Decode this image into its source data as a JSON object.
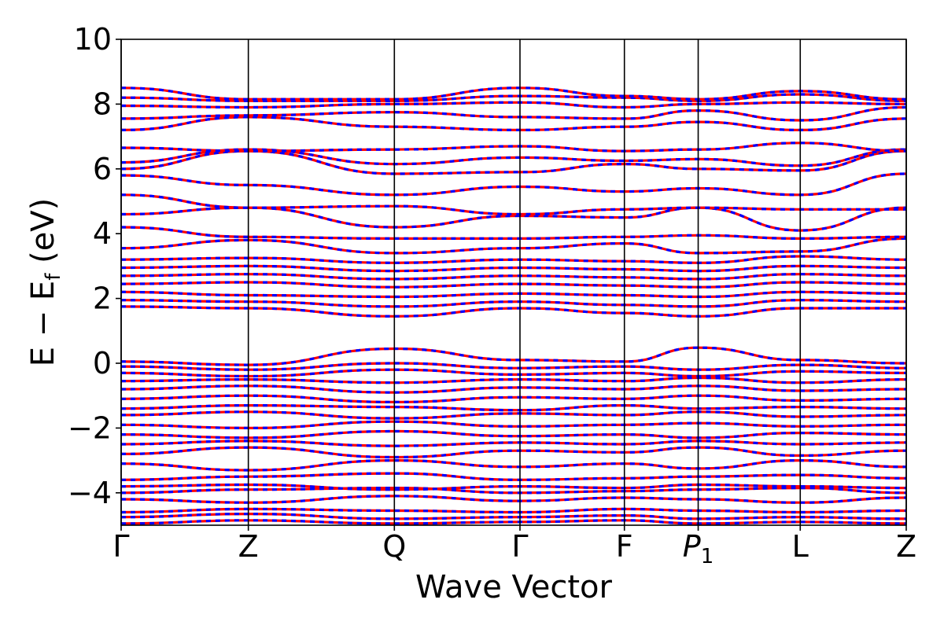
{
  "chart_data": {
    "type": "line",
    "xlabel": "Wave Vector",
    "ylabel": "E − E_f (eV)",
    "ylabel_parts": {
      "main": "E − E",
      "sub": "f",
      "unit": " (eV)"
    },
    "ylim": [
      -5,
      10
    ],
    "y_ticks": [
      {
        "value": -4,
        "label": "−4"
      },
      {
        "value": -2,
        "label": "−2"
      },
      {
        "value": 0,
        "label": "0"
      },
      {
        "value": 2,
        "label": "2"
      },
      {
        "value": 4,
        "label": "4"
      },
      {
        "value": 6,
        "label": "6"
      },
      {
        "value": 8,
        "label": "8"
      },
      {
        "value": 10,
        "label": "10"
      }
    ],
    "k_points": [
      {
        "label": "Γ",
        "k": 0.0
      },
      {
        "label": "Z",
        "k": 0.162
      },
      {
        "label": "Q",
        "k": 0.348
      },
      {
        "label": "Γ",
        "k": 0.508
      },
      {
        "label": "F",
        "k": 0.641
      },
      {
        "label": "P",
        "sub": "1",
        "k": 0.735
      },
      {
        "label": "L",
        "k": 0.865
      },
      {
        "label": "Z",
        "k": 1.0
      }
    ],
    "grid": false,
    "legend": "none",
    "colors": {
      "solid_band": "#ff0000",
      "dashed_band": "#0000ff"
    },
    "series_style_note": "each band drawn as solid red line overlaid by dashed blue line",
    "bands": [
      {
        "values": [
          -4.95,
          -4.85,
          -4.95,
          -4.9,
          -4.85,
          -4.95,
          -4.9,
          -4.95
        ]
      },
      {
        "values": [
          -4.75,
          -4.65,
          -4.8,
          -4.75,
          -4.7,
          -4.8,
          -4.75,
          -4.8
        ]
      },
      {
        "values": [
          -4.6,
          -4.5,
          -4.55,
          -4.6,
          -4.5,
          -4.55,
          -4.6,
          -4.55
        ]
      },
      {
        "values": [
          -4.2,
          -4.3,
          -4.1,
          -4.25,
          -4.15,
          -4.2,
          -4.3,
          -4.15
        ]
      },
      {
        "values": [
          -4.0,
          -3.9,
          -3.85,
          -4.0,
          -3.95,
          -3.9,
          -3.85,
          -4.0
        ]
      },
      {
        "values": [
          -3.8,
          -3.75,
          -3.9,
          -3.8,
          -3.85,
          -3.75,
          -3.8,
          -3.85
        ]
      },
      {
        "values": [
          -3.6,
          -3.5,
          -3.4,
          -3.6,
          -3.55,
          -3.5,
          -3.45,
          -3.55
        ]
      },
      {
        "values": [
          -3.1,
          -3.3,
          -3.0,
          -3.2,
          -3.1,
          -3.25,
          -3.0,
          -3.2
        ]
      },
      {
        "values": [
          -2.8,
          -2.6,
          -2.9,
          -2.7,
          -2.75,
          -2.6,
          -2.85,
          -2.7
        ]
      },
      {
        "values": [
          -2.5,
          -2.4,
          -2.55,
          -2.45,
          -2.5,
          -2.4,
          -2.5,
          -2.45
        ]
      },
      {
        "values": [
          -2.2,
          -2.3,
          -2.1,
          -2.25,
          -2.2,
          -2.3,
          -2.15,
          -2.2
        ]
      },
      {
        "values": [
          -1.9,
          -2.0,
          -1.8,
          -1.95,
          -1.9,
          -1.85,
          -1.95,
          -1.9
        ]
      },
      {
        "values": [
          -1.6,
          -1.5,
          -1.7,
          -1.55,
          -1.6,
          -1.5,
          -1.65,
          -1.6
        ]
      },
      {
        "values": [
          -1.4,
          -1.3,
          -1.35,
          -1.45,
          -1.3,
          -1.4,
          -1.35,
          -1.4
        ]
      },
      {
        "values": [
          -1.1,
          -1.0,
          -1.2,
          -1.05,
          -1.1,
          -1.0,
          -1.15,
          -1.1
        ]
      },
      {
        "values": [
          -0.8,
          -0.7,
          -0.9,
          -0.75,
          -0.8,
          -0.7,
          -0.85,
          -0.8
        ]
      },
      {
        "values": [
          -0.55,
          -0.5,
          -0.6,
          -0.5,
          -0.55,
          -0.45,
          -0.6,
          -0.5
        ]
      },
      {
        "values": [
          -0.3,
          -0.4,
          -0.2,
          -0.35,
          -0.3,
          -0.4,
          -0.25,
          -0.3
        ]
      },
      {
        "values": [
          -0.1,
          -0.2,
          0.0,
          -0.15,
          -0.1,
          -0.2,
          -0.05,
          -0.15
        ]
      },
      {
        "values": [
          0.05,
          -0.05,
          0.45,
          0.1,
          0.05,
          0.48,
          0.1,
          0.0
        ]
      },
      {
        "values": [
          1.75,
          1.7,
          1.45,
          1.7,
          1.55,
          1.45,
          1.7,
          1.7
        ]
      },
      {
        "values": [
          1.95,
          1.9,
          1.75,
          1.9,
          1.8,
          1.75,
          1.95,
          1.9
        ]
      },
      {
        "values": [
          2.2,
          2.1,
          2.05,
          2.15,
          2.1,
          2.05,
          2.2,
          2.15
        ]
      },
      {
        "values": [
          2.45,
          2.5,
          2.35,
          2.45,
          2.4,
          2.35,
          2.5,
          2.45
        ]
      },
      {
        "values": [
          2.7,
          2.75,
          2.6,
          2.7,
          2.65,
          2.6,
          2.75,
          2.7
        ]
      },
      {
        "values": [
          2.95,
          3.0,
          2.85,
          2.95,
          2.9,
          2.85,
          3.0,
          2.95
        ]
      },
      {
        "values": [
          3.2,
          3.25,
          3.1,
          3.2,
          3.15,
          3.1,
          3.3,
          3.2
        ]
      },
      {
        "values": [
          3.55,
          3.8,
          3.4,
          3.55,
          3.7,
          3.4,
          3.45,
          3.85
        ]
      },
      {
        "values": [
          4.2,
          3.9,
          3.85,
          3.85,
          3.9,
          3.95,
          3.85,
          3.9
        ]
      },
      {
        "values": [
          4.6,
          4.8,
          4.2,
          4.55,
          4.5,
          4.8,
          4.1,
          4.8
        ]
      },
      {
        "values": [
          5.2,
          4.8,
          4.85,
          4.6,
          4.75,
          4.8,
          4.75,
          4.75
        ]
      },
      {
        "values": [
          5.8,
          5.5,
          5.2,
          5.45,
          5.3,
          5.4,
          5.2,
          5.85
        ]
      },
      {
        "values": [
          6.0,
          6.55,
          5.85,
          5.9,
          6.15,
          6.0,
          5.95,
          6.55
        ]
      },
      {
        "values": [
          6.2,
          6.6,
          6.15,
          6.35,
          6.25,
          6.3,
          6.1,
          6.6
        ]
      },
      {
        "values": [
          6.65,
          6.55,
          6.6,
          6.7,
          6.55,
          6.6,
          6.8,
          6.55
        ]
      },
      {
        "values": [
          7.2,
          7.6,
          7.3,
          7.2,
          7.3,
          7.45,
          7.2,
          7.55
        ]
      },
      {
        "values": [
          7.55,
          7.65,
          7.75,
          7.6,
          7.55,
          7.8,
          7.5,
          7.9
        ]
      },
      {
        "values": [
          7.95,
          7.9,
          8.0,
          8.05,
          7.9,
          8.0,
          8.05,
          8.0
        ]
      },
      {
        "values": [
          8.2,
          8.1,
          8.1,
          8.25,
          8.2,
          8.1,
          8.3,
          8.1
        ]
      },
      {
        "values": [
          8.5,
          8.15,
          8.15,
          8.5,
          8.25,
          8.15,
          8.4,
          8.15
        ]
      }
    ]
  }
}
